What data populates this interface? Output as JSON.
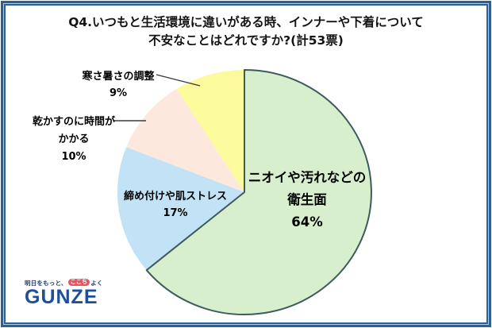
{
  "title": {
    "line1": "Q4.いつもと生活環境に違いがある時、インナーや下着について",
    "line2": "不安なことはどれですか?(計53票)"
  },
  "chart_data": {
    "type": "pie",
    "title": "Q4.いつもと生活環境に違いがある時、インナーや下着について不安なことはどれですか?",
    "total_label": "計53票",
    "total_votes": 53,
    "start_angle_deg": -90,
    "direction": "clockwise",
    "outline_color": "#3d5a5e",
    "leader_line_color": "#3a3a3a",
    "slices": [
      {
        "key": "hygiene",
        "label": "ニオイや汚れなどの衛生面",
        "value_pct": 64,
        "color": "#d8efcd",
        "outlined": true,
        "label_position": "inside",
        "label_lines": [
          "ニオイや汚れなどの",
          "衛生面",
          "64%"
        ]
      },
      {
        "key": "stress",
        "label": "締め付けや肌ストレス",
        "value_pct": 17,
        "color": "#c2e3f5",
        "outlined": false,
        "label_position": "inside",
        "label_lines": [
          "締め付けや肌ストレス",
          "17%"
        ]
      },
      {
        "key": "drying",
        "label": "乾かすのに時間がかかる",
        "value_pct": 10,
        "color": "#fce8dc",
        "outlined": false,
        "label_position": "outside",
        "label_lines": [
          "乾かすのに時間が",
          "かかる",
          "10%"
        ]
      },
      {
        "key": "temperature",
        "label": "寒さ暑さの調整",
        "value_pct": 9,
        "color": "#fbfa9d",
        "outlined": false,
        "label_position": "outside",
        "label_lines": [
          "寒さ暑さの調整",
          "9%"
        ]
      }
    ]
  },
  "logo": {
    "tagline_part1": "明日をもっと、",
    "tagline_highlight": "ここち",
    "tagline_part2": "よく",
    "brand": "GUNZE",
    "brand_color": "#1e4e9c",
    "highlight_bg": "#e8555f"
  },
  "frame": {
    "border_color": "#2e5f94",
    "inner_line_color": "#aecdea"
  }
}
